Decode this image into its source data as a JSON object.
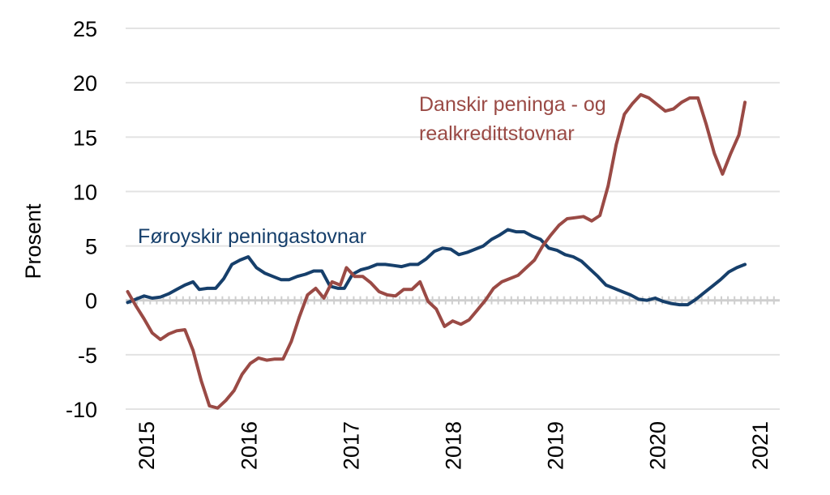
{
  "chart_data": {
    "type": "line",
    "ylabel": "Prosent",
    "ylim": [
      -10,
      25
    ],
    "yticks": [
      25,
      20,
      15,
      10,
      5,
      0,
      -5,
      -10
    ],
    "xlim": [
      2014.8,
      2021.2
    ],
    "xticks": [
      "2015",
      "2016",
      "2017",
      "2018",
      "2019",
      "2020",
      "2021"
    ],
    "grid": true,
    "colors": {
      "grid": "#e3e3e3",
      "zero_line": "#cfcfcf"
    },
    "series": [
      {
        "name": "Føroyskir peningastovnar",
        "label_lines": [
          "Føroyskir peningastovnar"
        ],
        "color": "#163f6b",
        "points": [
          [
            2014.82,
            -0.2
          ],
          [
            2014.9,
            0.1
          ],
          [
            2014.98,
            0.4
          ],
          [
            2015.06,
            0.2
          ],
          [
            2015.14,
            0.3
          ],
          [
            2015.22,
            0.6
          ],
          [
            2015.3,
            1.0
          ],
          [
            2015.38,
            1.4
          ],
          [
            2015.46,
            1.7
          ],
          [
            2015.52,
            1.0
          ],
          [
            2015.6,
            1.1
          ],
          [
            2015.68,
            1.1
          ],
          [
            2015.76,
            2.0
          ],
          [
            2015.84,
            3.3
          ],
          [
            2015.92,
            3.7
          ],
          [
            2016.0,
            4.0
          ],
          [
            2016.08,
            3.0
          ],
          [
            2016.16,
            2.5
          ],
          [
            2016.24,
            2.2
          ],
          [
            2016.32,
            1.9
          ],
          [
            2016.4,
            1.9
          ],
          [
            2016.48,
            2.2
          ],
          [
            2016.56,
            2.4
          ],
          [
            2016.64,
            2.7
          ],
          [
            2016.72,
            2.7
          ],
          [
            2016.8,
            1.3
          ],
          [
            2016.88,
            1.1
          ],
          [
            2016.94,
            1.1
          ],
          [
            2017.02,
            2.4
          ],
          [
            2017.1,
            2.8
          ],
          [
            2017.18,
            3.0
          ],
          [
            2017.26,
            3.3
          ],
          [
            2017.34,
            3.3
          ],
          [
            2017.42,
            3.2
          ],
          [
            2017.5,
            3.1
          ],
          [
            2017.58,
            3.3
          ],
          [
            2017.66,
            3.3
          ],
          [
            2017.74,
            3.8
          ],
          [
            2017.82,
            4.5
          ],
          [
            2017.9,
            4.8
          ],
          [
            2017.98,
            4.7
          ],
          [
            2018.06,
            4.2
          ],
          [
            2018.14,
            4.4
          ],
          [
            2018.22,
            4.7
          ],
          [
            2018.3,
            5.0
          ],
          [
            2018.38,
            5.6
          ],
          [
            2018.46,
            6.0
          ],
          [
            2018.54,
            6.5
          ],
          [
            2018.62,
            6.3
          ],
          [
            2018.7,
            6.3
          ],
          [
            2018.78,
            5.9
          ],
          [
            2018.86,
            5.6
          ],
          [
            2018.94,
            4.8
          ],
          [
            2019.02,
            4.6
          ],
          [
            2019.1,
            4.2
          ],
          [
            2019.18,
            4.0
          ],
          [
            2019.26,
            3.6
          ],
          [
            2019.34,
            2.9
          ],
          [
            2019.42,
            2.2
          ],
          [
            2019.5,
            1.4
          ],
          [
            2019.58,
            1.1
          ],
          [
            2019.66,
            0.8
          ],
          [
            2019.74,
            0.5
          ],
          [
            2019.82,
            0.1
          ],
          [
            2019.9,
            0.0
          ],
          [
            2019.98,
            0.2
          ],
          [
            2020.06,
            -0.1
          ],
          [
            2020.14,
            -0.3
          ],
          [
            2020.22,
            -0.4
          ],
          [
            2020.3,
            -0.4
          ],
          [
            2020.38,
            0.1
          ],
          [
            2020.46,
            0.7
          ],
          [
            2020.54,
            1.3
          ],
          [
            2020.62,
            1.9
          ],
          [
            2020.7,
            2.6
          ],
          [
            2020.78,
            3.0
          ],
          [
            2020.86,
            3.3
          ]
        ]
      },
      {
        "name": "Danskir peninga - og realkredittstovnar",
        "label_lines": [
          "Danskir peninga - og",
          "realkredittstovnar"
        ],
        "color": "#9a4a45",
        "points": [
          [
            2014.82,
            0.8
          ],
          [
            2014.9,
            -0.5
          ],
          [
            2014.98,
            -1.7
          ],
          [
            2015.06,
            -3.0
          ],
          [
            2015.14,
            -3.6
          ],
          [
            2015.22,
            -3.1
          ],
          [
            2015.3,
            -2.8
          ],
          [
            2015.38,
            -2.7
          ],
          [
            2015.46,
            -4.6
          ],
          [
            2015.54,
            -7.4
          ],
          [
            2015.62,
            -9.7
          ],
          [
            2015.7,
            -9.9
          ],
          [
            2015.78,
            -9.2
          ],
          [
            2015.86,
            -8.3
          ],
          [
            2015.94,
            -6.8
          ],
          [
            2016.02,
            -5.8
          ],
          [
            2016.1,
            -5.3
          ],
          [
            2016.18,
            -5.5
          ],
          [
            2016.26,
            -5.4
          ],
          [
            2016.34,
            -5.4
          ],
          [
            2016.42,
            -3.8
          ],
          [
            2016.5,
            -1.5
          ],
          [
            2016.58,
            0.5
          ],
          [
            2016.66,
            1.1
          ],
          [
            2016.74,
            0.2
          ],
          [
            2016.82,
            1.7
          ],
          [
            2016.9,
            1.4
          ],
          [
            2016.96,
            3.0
          ],
          [
            2017.04,
            2.2
          ],
          [
            2017.12,
            2.2
          ],
          [
            2017.2,
            1.6
          ],
          [
            2017.28,
            0.8
          ],
          [
            2017.36,
            0.5
          ],
          [
            2017.44,
            0.4
          ],
          [
            2017.52,
            1.0
          ],
          [
            2017.6,
            1.0
          ],
          [
            2017.68,
            1.7
          ],
          [
            2017.76,
            -0.1
          ],
          [
            2017.84,
            -0.8
          ],
          [
            2017.92,
            -2.4
          ],
          [
            2018.0,
            -1.9
          ],
          [
            2018.08,
            -2.2
          ],
          [
            2018.16,
            -1.8
          ],
          [
            2018.24,
            -0.9
          ],
          [
            2018.32,
            0.0
          ],
          [
            2018.4,
            1.1
          ],
          [
            2018.48,
            1.7
          ],
          [
            2018.56,
            2.0
          ],
          [
            2018.64,
            2.3
          ],
          [
            2018.72,
            3.0
          ],
          [
            2018.8,
            3.7
          ],
          [
            2018.88,
            5.0
          ],
          [
            2018.96,
            6.0
          ],
          [
            2019.04,
            6.9
          ],
          [
            2019.12,
            7.5
          ],
          [
            2019.2,
            7.6
          ],
          [
            2019.28,
            7.7
          ],
          [
            2019.36,
            7.3
          ],
          [
            2019.44,
            7.8
          ],
          [
            2019.52,
            10.5
          ],
          [
            2019.6,
            14.3
          ],
          [
            2019.68,
            17.1
          ],
          [
            2019.76,
            18.1
          ],
          [
            2019.84,
            18.9
          ],
          [
            2019.92,
            18.6
          ],
          [
            2020.0,
            18.0
          ],
          [
            2020.08,
            17.4
          ],
          [
            2020.16,
            17.6
          ],
          [
            2020.24,
            18.2
          ],
          [
            2020.32,
            18.6
          ],
          [
            2020.4,
            18.6
          ],
          [
            2020.48,
            16.2
          ],
          [
            2020.56,
            13.5
          ],
          [
            2020.64,
            11.6
          ],
          [
            2020.72,
            13.5
          ],
          [
            2020.8,
            15.2
          ],
          [
            2020.86,
            18.2
          ]
        ]
      }
    ]
  }
}
